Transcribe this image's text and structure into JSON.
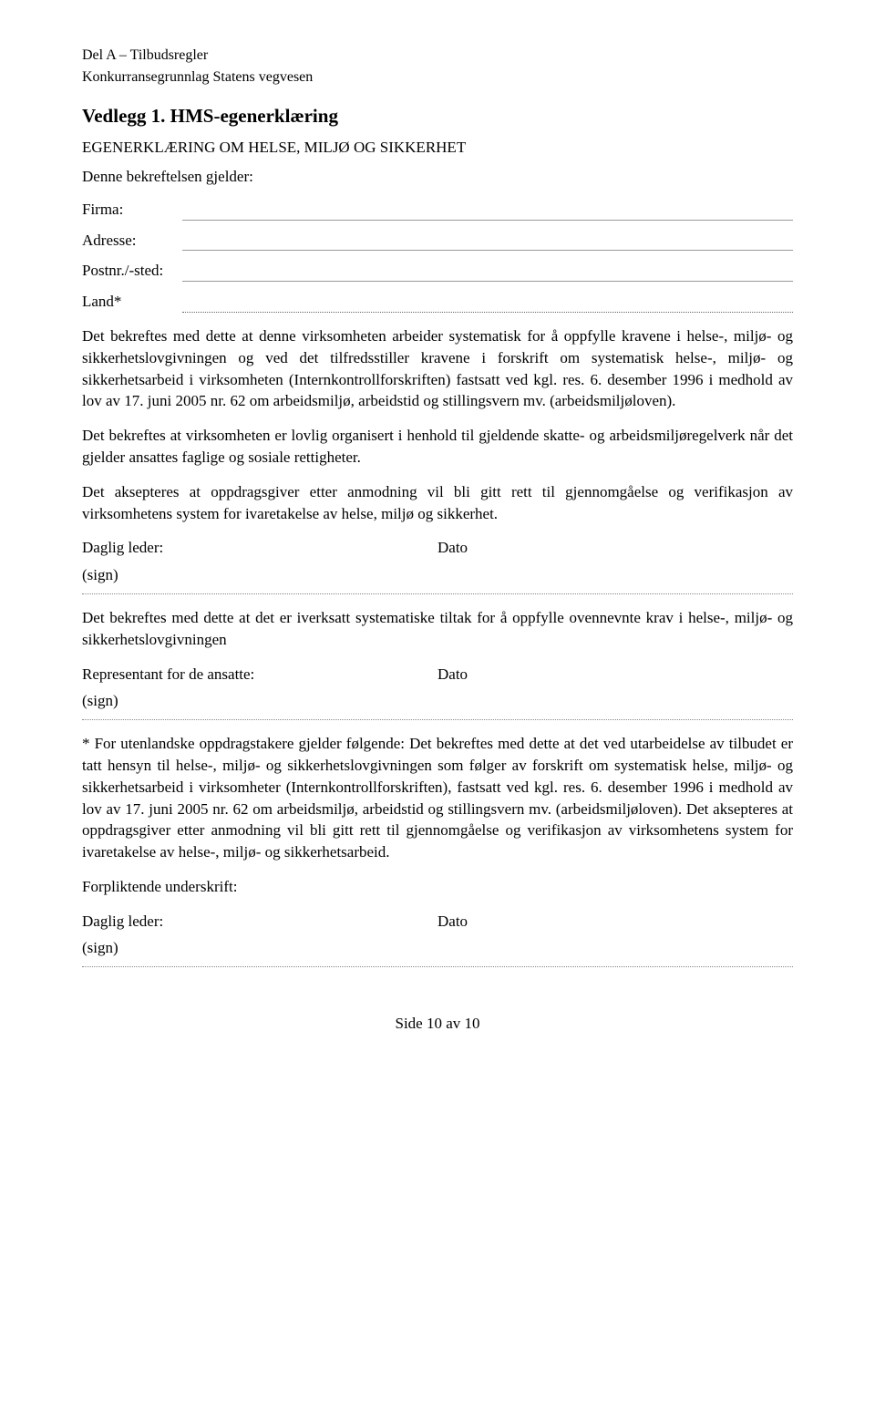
{
  "header": {
    "line1": "Del A – Tilbudsregler",
    "line2": "Konkurransegrunnlag Statens vegvesen"
  },
  "title": "Vedlegg 1. HMS-egenerklæring",
  "subtitle": "EGENERKLÆRING OM HELSE, MILJØ OG SIKKERHET",
  "intro": "Denne bekreftelsen gjelder:",
  "form": {
    "firma": "Firma:",
    "adresse": "Adresse:",
    "postnr": "Postnr./-sted:",
    "land": "Land*"
  },
  "p1": "Det bekreftes med dette at denne virksomheten arbeider systematisk for å oppfylle kravene i helse-, miljø- og sikkerhetslovgivningen og ved det tilfredsstiller kravene i forskrift om systematisk helse-, miljø- og sikkerhetsarbeid i virksomheten (Internkontrollforskriften) fastsatt ved kgl. res. 6. desember 1996 i medhold av lov av 17. juni 2005 nr. 62 om arbeidsmiljø, arbeidstid og stillingsvern mv. (arbeidsmiljøloven).",
  "p2": "Det bekreftes at virksomheten er lovlig organisert i henhold til gjeldende skatte- og arbeidsmiljøregelverk når det gjelder ansattes faglige og sosiale rettigheter.",
  "p3": "Det aksepteres at oppdragsgiver etter anmodning vil bli gitt rett til gjennomgåelse og verifikasjon av virksomhetens system for ivaretakelse av helse, miljø og sikkerhet.",
  "sig1": {
    "left": "Daglig leder:",
    "right": "Dato",
    "sign": "(sign)"
  },
  "p4": "Det bekreftes med dette at det er iverksatt systematiske tiltak for å oppfylle ovennevnte krav i helse-, miljø- og sikkerhetslovgivningen",
  "sig2": {
    "left": "Representant for de ansatte:",
    "right": "Dato",
    "sign": "(sign)"
  },
  "footnote": "* For utenlandske oppdragstakere gjelder følgende: Det bekreftes med dette at det ved utarbeidelse av tilbudet er tatt hensyn til helse-, miljø- og sikkerhetslovgivningen som følger av forskrift om systematisk helse, miljø- og sikkerhetsarbeid i virksomheter (Internkontrollforskriften), fastsatt ved kgl. res. 6. desember 1996 i medhold av lov av 17. juni 2005 nr. 62 om arbeidsmiljø, arbeidstid og stillingsvern mv. (arbeidsmiljøloven). Det aksepteres at oppdragsgiver etter anmodning vil bli gitt rett til gjennomgåelse og verifikasjon av virksomhetens system for ivaretakelse av helse-, miljø- og sikkerhetsarbeid.",
  "forpliktende": "Forpliktende underskrift:",
  "sig3": {
    "left": "Daglig leder:",
    "right": "Dato",
    "sign": "(sign)"
  },
  "pageNumber": "Side 10 av 10"
}
